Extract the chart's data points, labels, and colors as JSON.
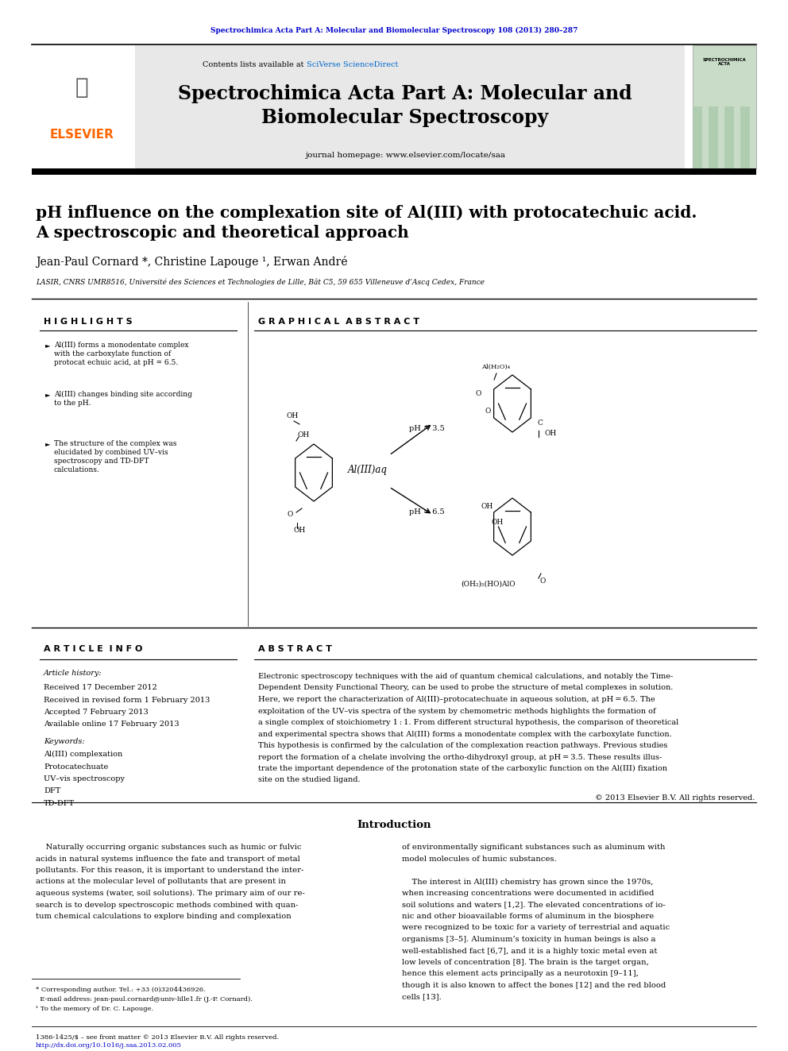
{
  "page_width": 9.92,
  "page_height": 13.23,
  "bg_color": "#ffffff",
  "top_url_text": "Spectrochimica Acta Part A: Molecular and Biomolecular Spectroscopy 108 (2013) 280–287",
  "top_url_color": "#0000cc",
  "journal_bg": "#e8e8e8",
  "journal_title": "Spectrochimica Acta Part A: Molecular and\nBiomolecular Spectroscopy",
  "journal_homepage": "journal homepage: www.elsevier.com/locate/saa",
  "article_title": "pH influence on the complexation site of Al(III) with protocatechuic acid.\nA spectroscopic and theoretical approach",
  "authors": "Jean-Paul Cornard *, Christine Lapouge ¹, Erwan André",
  "affiliation": "LASIR, CNRS UMR8516, Université des Sciences et Technologies de Lille, Bât C5, 59 655 Villeneuve d’Ascq Cedex, France",
  "highlights_title": "H I G H L I G H T S",
  "highlights": [
    "Al(III) forms a monodentate complex\nwith the carboxylate function of\nprotocat echuic acid, at pH = 6.5.",
    "Al(III) changes binding site according\nto the pH.",
    "The structure of the complex was\nelucidated by combined UV–vis\nspectroscopy and TD-DFT\ncalculations."
  ],
  "graphical_abstract_title": "G R A P H I C A L  A B S T R A C T",
  "article_info_title": "A R T I C L E  I N F O",
  "article_history_label": "Article history:",
  "article_history": [
    "Received 17 December 2012",
    "Received in revised form 1 February 2013",
    "Accepted 7 February 2013",
    "Available online 17 February 2013"
  ],
  "keywords_label": "Keywords:",
  "keywords": [
    "Al(III) complexation",
    "Protocatechuate",
    "UV–vis spectroscopy",
    "DFT",
    "TD-DFT"
  ],
  "abstract_title": "A B S T R A C T",
  "copyright_text": "© 2013 Elsevier B.V. All rights reserved.",
  "intro_title": "Introduction",
  "footnote_star": "* Corresponding author. Tel.: +33 (0)3204436926.\n  E-mail address: jean-paul.cornard@univ-lille1.fr (J.-P. Cornard).\n¹ To the memory of Dr. C. Lapouge.",
  "footer_line1": "1386-1425/$ – see front matter © 2013 Elsevier B.V. All rights reserved.",
  "footer_line2": "http://dx.doi.org/10.1016/j.saa.2013.02.005",
  "footer_url_color": "#0000cc",
  "elsevier_color": "#ff6600",
  "sciverse_color": "#0066cc"
}
